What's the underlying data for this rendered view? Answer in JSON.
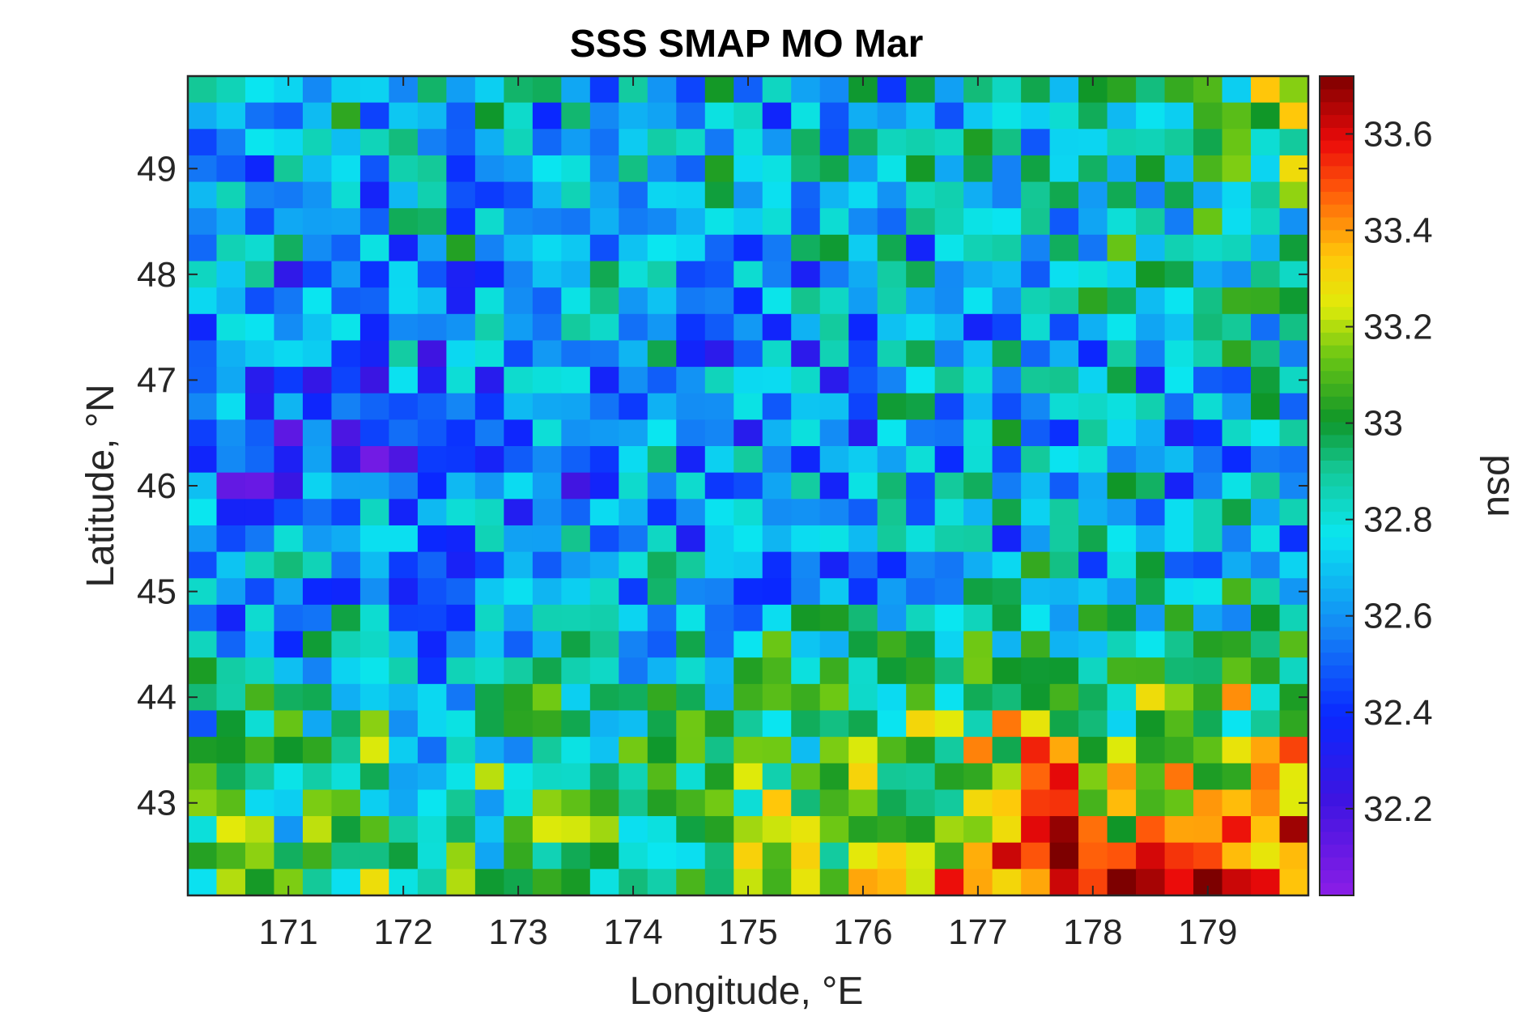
{
  "chart_data": {
    "type": "heatmap",
    "title": "SSS SMAP MO Mar",
    "xlabel": "Longitude, °E",
    "ylabel": "Latitude, °N",
    "xlim": [
      170.125,
      179.875
    ],
    "ylim": [
      42.125,
      49.875
    ],
    "x_ticks": [
      "171",
      "172",
      "173",
      "174",
      "175",
      "176",
      "177",
      "178",
      "179"
    ],
    "y_ticks": [
      "43",
      "44",
      "45",
      "46",
      "47",
      "48",
      "49"
    ],
    "grid": false,
    "colormap": "jet-like (purple-blue-cyan-green-yellow-red-darkred)",
    "colorbar": {
      "label": "psu",
      "range": [
        32.02,
        33.72
      ],
      "ticks": [
        "32.2",
        "32.4",
        "32.6",
        "32.8",
        "33",
        "33.2",
        "33.4",
        "33.6"
      ]
    },
    "grid_resolution_deg": 0.25,
    "rows_lat_values": [
      "49.75",
      "49.50",
      "49.25",
      "49.00",
      "48.75",
      "48.50",
      "48.25",
      "48.00",
      "47.75",
      "47.50",
      "47.25",
      "47.00",
      "46.75",
      "46.50",
      "46.25",
      "46.00",
      "45.75",
      "45.50",
      "45.25",
      "45.00",
      "44.75",
      "44.50",
      "44.25",
      "44.00",
      "43.75",
      "43.50",
      "43.25",
      "43.00",
      "42.75",
      "42.50",
      "42.25"
    ],
    "cols_lon_values": "170.25 to 179.75 step 0.25 (39 columns)",
    "region_summary": {
      "north_west_mean_psu": 32.7,
      "south_east_mean_psu": 33.55,
      "max_psu": 33.7,
      "min_psu": 32.05
    }
  }
}
